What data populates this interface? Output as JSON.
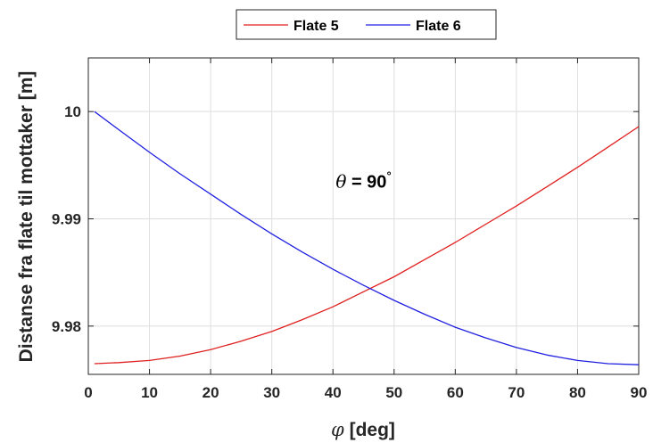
{
  "chart_data": {
    "type": "line",
    "title": "",
    "xlabel_symbol": "φ",
    "xlabel": "[deg]",
    "ylabel": "Distanse fra flate til mottaker [m]",
    "xlim": [
      0,
      90
    ],
    "ylim": [
      9.9755,
      10.005
    ],
    "xticks": [
      0,
      10,
      20,
      30,
      40,
      50,
      60,
      70,
      80,
      90
    ],
    "yticks": [
      9.98,
      9.99,
      10
    ],
    "ytick_labels": [
      "9.98",
      "9.99",
      "10"
    ],
    "grid": true,
    "legend_position": "top-center",
    "x": [
      1,
      5,
      10,
      15,
      20,
      25,
      30,
      35,
      40,
      45,
      50,
      55,
      60,
      65,
      70,
      75,
      80,
      85,
      90
    ],
    "series": [
      {
        "name": "Flate 5",
        "color": "#e02020",
        "values": [
          9.9765,
          9.9766,
          9.9768,
          9.9772,
          9.9778,
          9.9786,
          9.9795,
          9.9806,
          9.9818,
          9.9832,
          9.9846,
          9.9862,
          9.9878,
          9.9895,
          9.9912,
          9.993,
          9.9948,
          9.9967,
          9.9986
        ]
      },
      {
        "name": "Flate 6",
        "color": "#2020e0",
        "values": [
          10.0,
          9.9983,
          9.9962,
          9.9942,
          9.9923,
          9.9904,
          9.9886,
          9.9869,
          9.9853,
          9.9838,
          9.9824,
          9.9811,
          9.9799,
          9.9789,
          9.978,
          9.9773,
          9.9768,
          9.9765,
          9.9764
        ]
      }
    ],
    "annotation": {
      "symbol": "θ",
      "text": " = 90",
      "superscript": "°",
      "x": 45,
      "y": 9.9935
    }
  }
}
